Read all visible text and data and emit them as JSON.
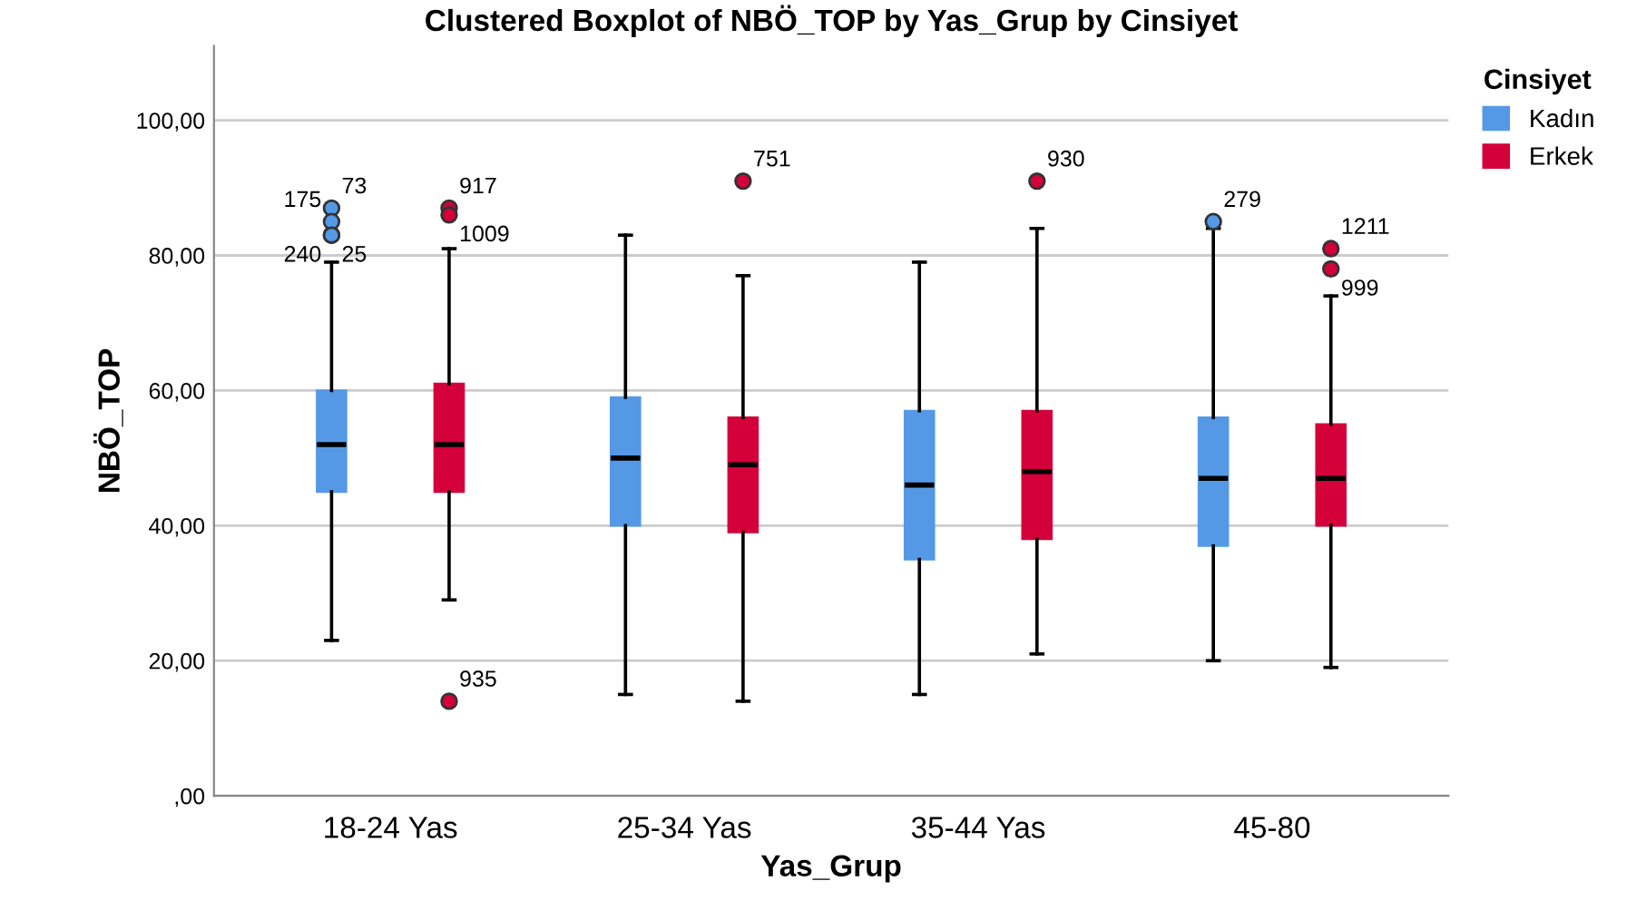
{
  "chart_data": {
    "type": "box",
    "title": "Clustered Boxplot of NBÖ_TOP by Yas_Grup by Cinsiyet",
    "xlabel": "Yas_Grup",
    "ylabel": "NBÖ_TOP",
    "legend_title": "Cinsiyet",
    "categories": [
      "18-24 Yas",
      "25-34 Yas",
      "35-44 Yas",
      "45-80"
    ],
    "series": [
      {
        "name": "Kadın",
        "color": "#5599e6",
        "boxes": [
          {
            "low": 23,
            "q1": 45,
            "median": 52,
            "q3": 60,
            "high": 79,
            "outliers": [
              87,
              83,
              85,
              83
            ]
          },
          {
            "low": 15,
            "q1": 40,
            "median": 50,
            "q3": 59,
            "high": 83
          },
          {
            "low": 15,
            "q1": 35,
            "median": 46,
            "q3": 57,
            "high": 79
          },
          {
            "low": 20,
            "q1": 37,
            "median": 47,
            "q3": 56,
            "high": 84,
            "outliers": [
              85
            ]
          }
        ]
      },
      {
        "name": "Erkek",
        "color": "#d4003a",
        "boxes": [
          {
            "low": 29,
            "q1": 45,
            "median": 52,
            "q3": 61,
            "high": 81,
            "outliers": [
              87,
              86,
              14
            ]
          },
          {
            "low": 14,
            "q1": 39,
            "median": 49,
            "q3": 56,
            "high": 77,
            "outliers": [
              91
            ]
          },
          {
            "low": 21,
            "q1": 38,
            "median": 48,
            "q3": 57,
            "high": 84,
            "outliers": [
              91
            ]
          },
          {
            "low": 19,
            "q1": 40,
            "median": 47,
            "q3": 55,
            "high": 74,
            "outliers": [
              81,
              78
            ]
          }
        ]
      }
    ],
    "ylim": [
      0,
      111
    ],
    "yticks": [
      {
        "value": 0,
        "label": ",00"
      },
      {
        "value": 20,
        "label": "20,00"
      },
      {
        "value": 40,
        "label": "40,00"
      },
      {
        "value": 60,
        "label": "60,00"
      },
      {
        "value": 80,
        "label": "80,00"
      },
      {
        "value": 100,
        "label": "100,00"
      }
    ],
    "grid": "y",
    "legend": "top right",
    "annotations": [
      "73",
      "25",
      "175",
      "240",
      "917",
      "1009",
      "935",
      "751",
      "930",
      "279",
      "1211",
      "999"
    ]
  }
}
